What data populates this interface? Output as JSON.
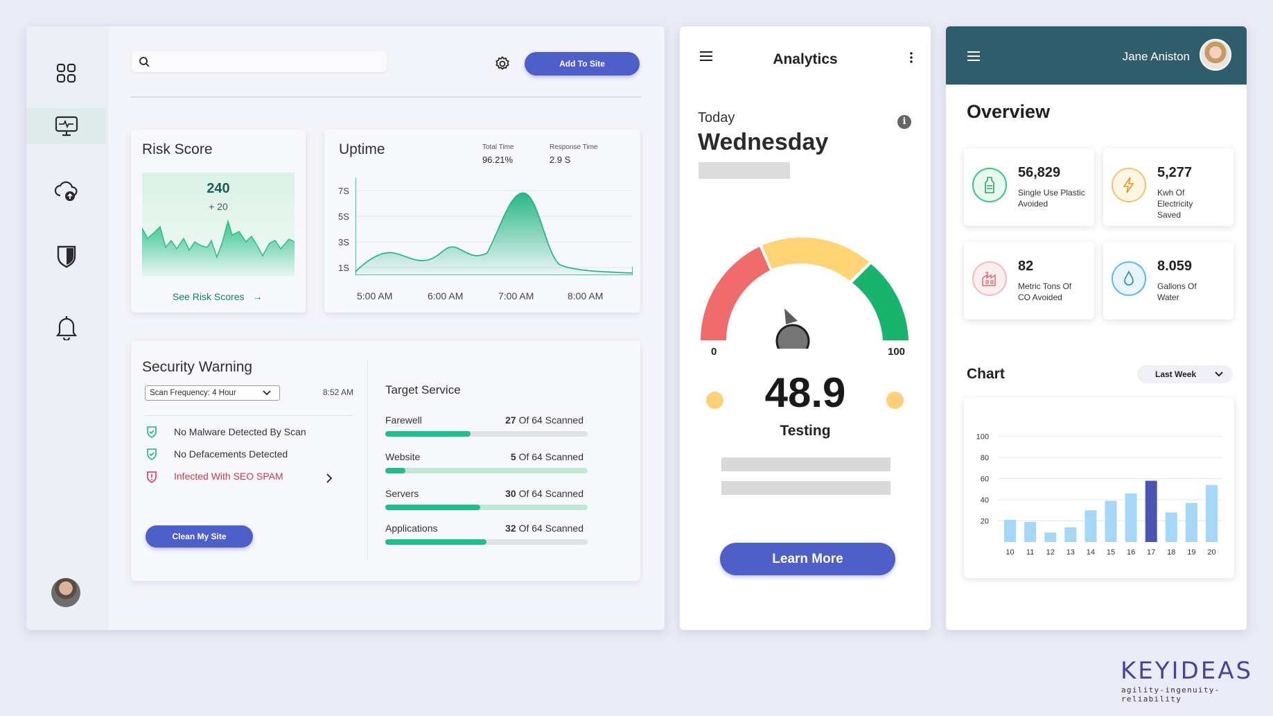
{
  "dashboard": {
    "search": {
      "placeholder": ""
    },
    "add_to_site": "Add To Site",
    "risk": {
      "title": "Risk Score",
      "score": "240",
      "delta": "+ 20",
      "link": "See Risk Scores"
    },
    "uptime": {
      "title": "Uptime",
      "total_time_label": "Total Time",
      "total_time_value": "96.21%",
      "response_time_label": "Response Time",
      "response_time_value": "2.9 S",
      "y_ticks": [
        "7S",
        "5S",
        "3S",
        "1S"
      ],
      "x_ticks": [
        "5:00 AM",
        "6:00 AM",
        "7:00 AM",
        "8:00 AM"
      ]
    },
    "security": {
      "title": "Security Warning",
      "scan_frequency": "Scan Frequency: 4 Hour",
      "time": "8:52 AM",
      "items": [
        {
          "text": "No Malware Detected By Scan",
          "status": "ok"
        },
        {
          "text": "No Defacements Detected",
          "status": "ok"
        },
        {
          "text": "Infected With SEO SPAM",
          "status": "alert"
        }
      ],
      "clean_button": "Clean My Site"
    },
    "target": {
      "title": "Target Service",
      "scanned_suffix": "Of 64 Scanned",
      "items": [
        {
          "name": "Farewell",
          "count": "27",
          "fraction": 0.42
        },
        {
          "name": "Website",
          "count": "5",
          "fraction": 0.1
        },
        {
          "name": "Servers",
          "count": "30",
          "fraction": 0.47
        },
        {
          "name": "Applications",
          "count": "32",
          "fraction": 0.5
        }
      ]
    }
  },
  "analytics": {
    "title": "Analytics",
    "today": "Today",
    "day": "Wednesday",
    "gauge_min": "0",
    "gauge_max": "100",
    "value": "48.9",
    "label": "Testing",
    "learn_more": "Learn More"
  },
  "overview": {
    "user_name": "Jane Aniston",
    "title": "Overview",
    "stats": [
      {
        "value": "56,829",
        "label": "Single Use Plastic Avoided",
        "icon": "bottle-icon"
      },
      {
        "value": "5,277",
        "label": "Kwh Of Electricity Saved",
        "icon": "lightning-icon"
      },
      {
        "value": "82",
        "label": "Metric Tons Of CO Avoided",
        "icon": "factory-icon"
      },
      {
        "value": "8.059",
        "label": "Gallons Of Water",
        "icon": "water-drop-icon"
      }
    ],
    "chart_title": "Chart",
    "period": "Last Week"
  },
  "chart_data": {
    "type": "bar",
    "categories": [
      "10",
      "11",
      "12",
      "13",
      "14",
      "15",
      "16",
      "17",
      "18",
      "19",
      "20"
    ],
    "values": [
      21,
      19,
      9,
      14,
      30,
      39,
      46,
      58,
      28,
      37,
      54
    ],
    "highlight_index": 7,
    "y_ticks": [
      "100",
      "80",
      "60",
      "40",
      "20"
    ],
    "ylim": [
      0,
      120
    ]
  },
  "branding": {
    "logo": "KEYIDEAS",
    "tagline": "agility-ingenuity-reliability"
  },
  "colors": {
    "accent": "#4f5fc9",
    "teal": "#1fbf8a",
    "header": "#2f5d6b",
    "bar": "#a4d8f6",
    "bar_highlight": "#4b55b0"
  }
}
